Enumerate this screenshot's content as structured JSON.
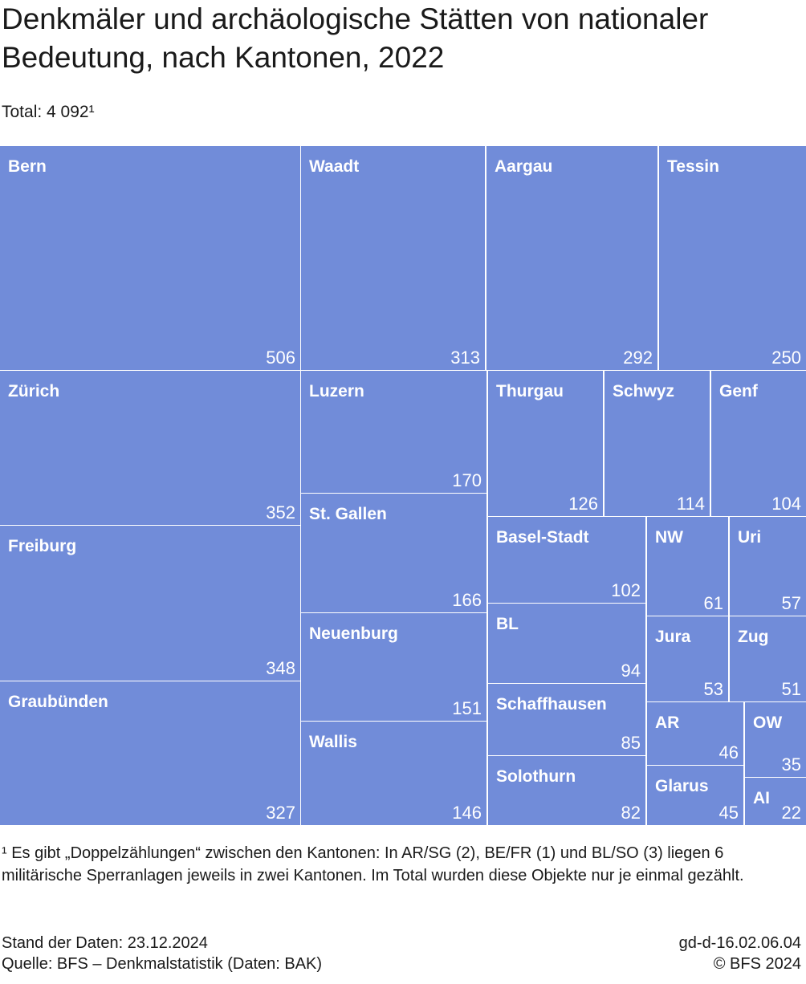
{
  "title": "Denkmäler und archäologische Stätten von nationaler Bedeutung, nach Kantonen, 2022",
  "subtitle": "Total: 4 092¹",
  "footnote": "¹ Es gibt „Doppelzählungen“ zwischen den Kantonen: In AR/SG (2), BE/FR (1) und BL/SO (3) liegen 6 militärische Sperranlagen jeweils in zwei Kantonen. Im Total wurden diese Objekte nur je einmal gezählt.",
  "footer": {
    "date": "Stand der Daten: 23.12.2024",
    "source": "Quelle: BFS – Denkmalstatistik (Daten: BAK)",
    "code": "gd-d-16.02.06.04",
    "copyright": "© BFS 2024"
  },
  "colors": {
    "tile": "#718cd9",
    "border": "#ffffff",
    "text": "#ffffff"
  },
  "chart_data": {
    "type": "treemap",
    "title": "Denkmäler und archäologische Stätten von nationaler Bedeutung, nach Kantonen, 2022",
    "total": "4 092",
    "categories": [
      "Bern",
      "Waadt",
      "Aargau",
      "Tessin",
      "Zürich",
      "Luzern",
      "Thurgau",
      "Schwyz",
      "Genf",
      "Freiburg",
      "St. Gallen",
      "Basel-Stadt",
      "NW",
      "Uri",
      "Neuenburg",
      "BL",
      "Jura",
      "Zug",
      "Graubünden",
      "Schaffhausen",
      "AR",
      "OW",
      "Wallis",
      "Solothurn",
      "Glarus",
      "AI"
    ],
    "values": [
      506,
      313,
      292,
      250,
      352,
      170,
      126,
      114,
      104,
      348,
      166,
      102,
      61,
      57,
      151,
      94,
      53,
      51,
      327,
      85,
      46,
      35,
      146,
      82,
      45,
      22
    ]
  }
}
